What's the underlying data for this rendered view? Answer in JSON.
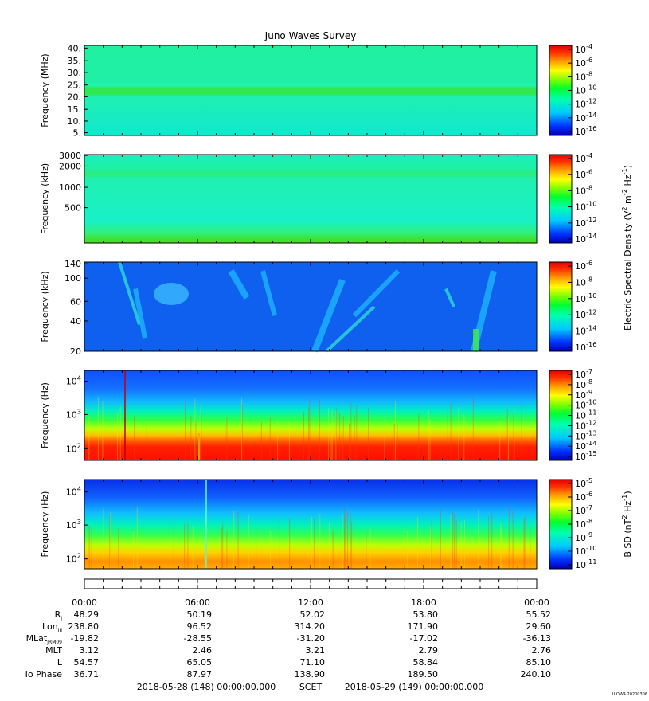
{
  "title": "Juno Waves Survey",
  "footer_label": "UIOWA 20200306",
  "chart_data": [
    {
      "type": "heatmap",
      "ylabel": "Frequency (MHz)",
      "y_ticks": [
        "40.",
        "35.",
        "30.",
        "25.",
        "20.",
        "15.",
        "10.",
        "5."
      ],
      "colorbar_ticks": [
        "10^-4",
        "10^-6",
        "10^-8",
        "10^-10",
        "10^-12",
        "10^-14",
        "10^-16"
      ],
      "colorbar_label": ""
    },
    {
      "type": "heatmap",
      "ylabel": "Frequency (kHz)",
      "y_ticks": [
        "3000",
        "2000",
        "1000",
        "500"
      ],
      "colorbar_ticks": [
        "10^-4",
        "10^-6",
        "10^-8",
        "10^-10",
        "10^-12",
        "10^-14"
      ],
      "colorbar_label": "Electric Spectral Density (V^2 m^-2 Hz^-1)"
    },
    {
      "type": "heatmap",
      "ylabel": "Frequency (kHz)",
      "y_ticks": [
        "140",
        "100",
        "60",
        "40",
        "20"
      ],
      "colorbar_ticks": [
        "10^-6",
        "10^-8",
        "10^-10",
        "10^-12",
        "10^-14",
        "10^-16"
      ],
      "colorbar_label": ""
    },
    {
      "type": "heatmap",
      "ylabel": "Frequency (Hz)",
      "y_ticks": [
        "10^4",
        "10^3",
        "10^2"
      ],
      "colorbar_ticks": [
        "10^-7",
        "10^-8",
        "10^-9",
        "10^-10",
        "10^-11",
        "10^-12",
        "10^-13",
        "10^-14",
        "10^-15"
      ],
      "colorbar_label": ""
    },
    {
      "type": "heatmap",
      "ylabel": "Frequency (Hz)",
      "y_ticks": [
        "10^4",
        "10^3",
        "10^2"
      ],
      "colorbar_ticks": [
        "10^-5",
        "10^-6",
        "10^-7",
        "10^-8",
        "10^-9",
        "10^-10",
        "10^-11"
      ],
      "colorbar_label": "B SD (nT^2 Hz^-1)"
    }
  ],
  "ephemeris": {
    "times": [
      "00:00",
      "06:00",
      "12:00",
      "18:00",
      "00:00"
    ],
    "rows": [
      {
        "label": "R",
        "sub": "J",
        "values": [
          "48.29",
          "50.19",
          "52.02",
          "53.80",
          "55.52"
        ]
      },
      {
        "label": "Lon",
        "sub": "III",
        "values": [
          "238.80",
          "96.52",
          "314.20",
          "171.90",
          "29.60"
        ]
      },
      {
        "label": "MLat",
        "sub": "JRM09",
        "values": [
          "-19.82",
          "-28.55",
          "-31.20",
          "-17.02",
          "-36.13"
        ]
      },
      {
        "label": "MLT",
        "sub": "",
        "values": [
          "3.12",
          "2.46",
          "3.21",
          "2.79",
          "2.76"
        ]
      },
      {
        "label": "L",
        "sub": "",
        "values": [
          "54.57",
          "65.05",
          "71.10",
          "58.84",
          "85.10"
        ]
      },
      {
        "label": "Io Phase",
        "sub": "",
        "values": [
          "36.71",
          "87.97",
          "138.90",
          "189.50",
          "240.10"
        ]
      }
    ],
    "start": "2018-05-28 (148) 00:00:00.000",
    "scet": "SCET",
    "end": "2018-05-29 (149) 00:00:00.000"
  }
}
